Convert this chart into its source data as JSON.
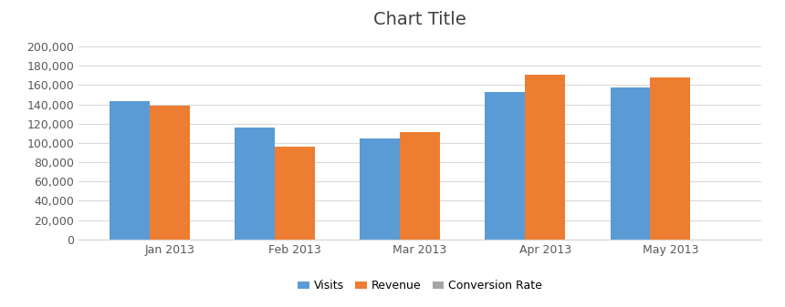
{
  "title": "Chart Title",
  "categories": [
    "Jan 2013",
    "Feb 2013",
    "Mar 2013",
    "Apr 2013",
    "May 2013"
  ],
  "series": [
    {
      "name": "Visits",
      "values": [
        143000,
        116000,
        105000,
        153000,
        158000
      ],
      "color": "#5B9BD5"
    },
    {
      "name": "Revenue",
      "values": [
        139000,
        96000,
        111000,
        171000,
        168000
      ],
      "color": "#ED7D31"
    },
    {
      "name": "Conversion Rate",
      "values": [
        0,
        0,
        0,
        0,
        0
      ],
      "color": "#A5A5A5"
    }
  ],
  "ylim": [
    0,
    210000
  ],
  "yticks": [
    0,
    20000,
    40000,
    60000,
    80000,
    100000,
    120000,
    140000,
    160000,
    180000,
    200000
  ],
  "background_color": "#FFFFFF",
  "plot_bg_color": "#FFFFFF",
  "grid_color": "#D9D9D9",
  "title_fontsize": 14,
  "tick_fontsize": 9,
  "legend_fontsize": 9,
  "bar_width": 0.32,
  "title_color": "#404040",
  "tick_color": "#595959"
}
